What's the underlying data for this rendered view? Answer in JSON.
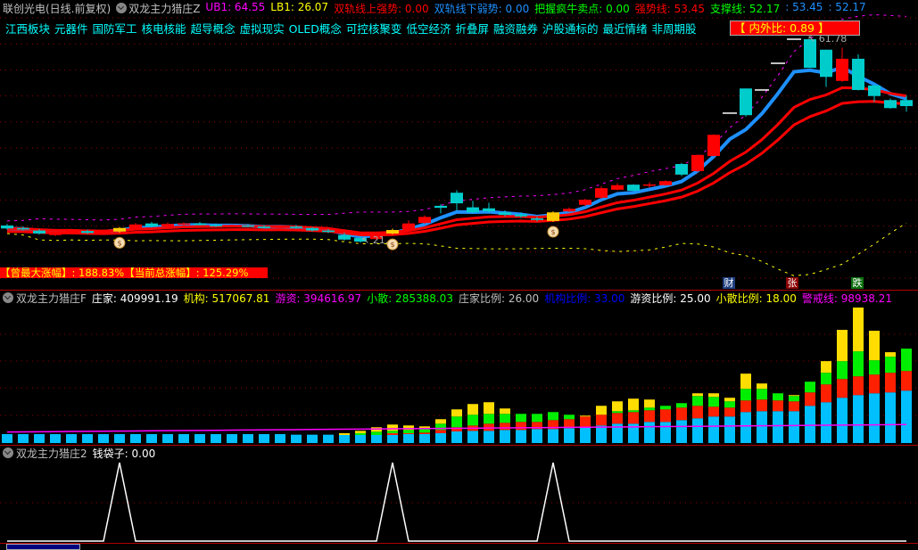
{
  "header": {
    "stock": "联创光电(日线.前复权)",
    "indicator": "双龙主力猎庄Z",
    "items": [
      {
        "label": "UB1: 64.55",
        "color": "#ff00ff"
      },
      {
        "label": "LB1: 26.07",
        "color": "#ffff00"
      },
      {
        "label": "双轨线上强势: 0.00",
        "color": "#ff0000"
      },
      {
        "label": "双轨线下弱势: 0.00",
        "color": "#1e90ff"
      },
      {
        "label": "把握疯牛卖点: 0.00",
        "color": "#00ff00"
      },
      {
        "label": "强势线: 53.45",
        "color": "#ff0000"
      },
      {
        "label": "支撑线: 52.17",
        "color": "#00ff00"
      },
      {
        "label": ": 53.45",
        "color": "#1e90ff"
      },
      {
        "label": ": 52.17",
        "color": "#1e90ff"
      }
    ]
  },
  "tags": [
    "江西板块",
    "元器件",
    "国防军工",
    "核电核能",
    "超导概念",
    "虚拟现实",
    "OLED概念",
    "可控核聚变",
    "低空经济",
    "折叠屏",
    "融资融券",
    "沪股通标的",
    "最近情绪",
    "非周期股"
  ],
  "ratio_label": "【 内外比: 0.89 】",
  "gain_label": "【曾最大涨幅】: 188.83%【当前总涨幅】: 125.29%",
  "markers": {
    "cai": "财",
    "zhang": "张",
    "die": "跌"
  },
  "panel2": {
    "indicator": "双龙主力猎庄F",
    "items": [
      {
        "label": "庄家: 409991.19",
        "color": "#ffffff"
      },
      {
        "label": "机构: 517067.81",
        "color": "#ffff00"
      },
      {
        "label": "游资: 394616.97",
        "color": "#ff00ff"
      },
      {
        "label": "小散: 285388.03",
        "color": "#00ff00"
      },
      {
        "label": "庄家比例: 26.00",
        "color": "#c0c0c0"
      },
      {
        "label": "机构比例: 33.00",
        "color": "#0000ff"
      },
      {
        "label": "游资比例: 25.00",
        "color": "#ffffff"
      },
      {
        "label": "小散比例: 18.00",
        "color": "#ffff00"
      },
      {
        "label": "警戒线: 98938.21",
        "color": "#ff00ff"
      }
    ]
  },
  "panel3": {
    "indicator": "双龙主力猎庄2",
    "items": [
      {
        "label": "钱袋子: 0.00",
        "color": "#ffffff"
      }
    ]
  },
  "colors": {
    "up": "#ff0000",
    "down": "#00cccc",
    "signal": "#ffcc00",
    "vol_base": "#00bfff",
    "vol_red": "#ff2000",
    "vol_green": "#00ee00",
    "vol_yellow": "#ffdd00"
  },
  "chart_data": {
    "type": "candlestick",
    "price_high_label": "61.78",
    "price_low_label": "21.",
    "candles": [
      [
        24.8,
        25.1,
        24.0,
        24.2
      ],
      [
        24.3,
        24.6,
        23.8,
        24.0
      ],
      [
        23.8,
        24.1,
        23.0,
        23.2
      ],
      [
        22.9,
        23.5,
        22.7,
        23.3
      ],
      [
        23.2,
        24.1,
        23.0,
        23.9
      ],
      [
        23.7,
        24.0,
        23.1,
        23.3
      ],
      [
        23.4,
        23.9,
        23.0,
        23.6
      ],
      [
        23.6,
        24.5,
        23.3,
        24.3
      ],
      [
        24.2,
        25.3,
        24.0,
        25.0
      ],
      [
        25.2,
        25.5,
        24.4,
        24.6
      ],
      [
        24.6,
        25.4,
        24.4,
        25.1
      ],
      [
        25.0,
        25.4,
        24.7,
        25.2
      ],
      [
        25.2,
        25.5,
        24.8,
        24.9
      ],
      [
        24.9,
        25.2,
        24.5,
        24.7
      ],
      [
        24.7,
        25.0,
        24.4,
        24.8
      ],
      [
        24.8,
        25.1,
        24.5,
        24.6
      ],
      [
        24.6,
        24.9,
        24.2,
        24.3
      ],
      [
        24.3,
        24.8,
        24.1,
        24.6
      ],
      [
        24.6,
        24.9,
        24.2,
        24.3
      ],
      [
        24.3,
        24.5,
        23.6,
        23.8
      ],
      [
        23.8,
        24.1,
        23.3,
        23.5
      ],
      [
        22.9,
        23.4,
        21.8,
        22.0
      ],
      [
        22.3,
        22.6,
        21.4,
        21.6
      ],
      [
        22.1,
        23.5,
        21.9,
        23.3
      ],
      [
        23.2,
        24.2,
        23.0,
        23.9
      ],
      [
        23.9,
        25.8,
        23.7,
        25.2
      ],
      [
        25.3,
        26.8,
        25.1,
        26.5
      ],
      [
        28.7,
        29.0,
        27.2,
        28.3
      ],
      [
        31.3,
        31.8,
        27.8,
        29.2
      ],
      [
        28.4,
        29.7,
        27.2,
        27.4
      ],
      [
        28.2,
        29.3,
        27.3,
        27.6
      ],
      [
        27.4,
        27.8,
        26.6,
        26.9
      ],
      [
        27.0,
        27.4,
        26.3,
        26.6
      ],
      [
        26.2,
        26.6,
        25.6,
        25.9
      ],
      [
        25.7,
        27.6,
        25.5,
        27.4
      ],
      [
        27.6,
        28.4,
        27.4,
        28.1
      ],
      [
        28.9,
        30.1,
        28.6,
        29.9
      ],
      [
        30.3,
        32.6,
        30.1,
        32.2
      ],
      [
        31.9,
        33.2,
        31.8,
        32.8
      ],
      [
        32.9,
        33.0,
        31.6,
        31.7
      ],
      [
        32.9,
        33.4,
        32.3,
        32.95
      ],
      [
        32.8,
        33.8,
        32.7,
        33.6
      ],
      [
        37.0,
        37.2,
        34.6,
        34.9
      ],
      [
        35.6,
        38.9,
        35.4,
        38.8
      ],
      [
        38.6,
        42.9,
        38.5,
        42.8
      ],
      [
        47.1,
        47.1,
        47.1,
        47.1
      ],
      [
        52.0,
        52.0,
        46.4,
        46.7
      ],
      [
        51.7,
        51.7,
        51.7,
        51.7
      ],
      [
        57.0,
        57.0,
        57.0,
        57.0
      ],
      [
        61.78,
        61.78,
        61.78,
        61.78
      ],
      [
        61.78,
        61.78,
        56.1,
        56.1
      ],
      [
        59.7,
        59.7,
        52.3,
        54.3
      ],
      [
        53.5,
        60.1,
        53.3,
        57.9
      ],
      [
        57.9,
        58.8,
        51.6,
        51.7
      ],
      [
        52.6,
        52.8,
        49.3,
        50.5
      ],
      [
        49.7,
        50.0,
        48.0,
        48.1
      ],
      [
        49.7,
        50.6,
        47.4,
        48.5
      ]
    ],
    "signal_bars": [
      7,
      24,
      34
    ],
    "volume": {
      "series": [
        "庄家",
        "机构",
        "游资",
        "小散"
      ],
      "stack": [
        [
          30,
          0,
          0,
          0
        ],
        [
          30,
          0,
          0,
          0
        ],
        [
          30,
          0,
          0,
          0
        ],
        [
          30,
          0,
          0,
          0
        ],
        [
          30,
          0,
          0,
          0
        ],
        [
          30,
          0,
          0,
          0
        ],
        [
          30,
          0,
          0,
          0
        ],
        [
          30,
          0,
          0,
          0
        ],
        [
          30,
          0,
          0,
          0
        ],
        [
          30,
          0,
          0,
          0
        ],
        [
          30,
          0,
          0,
          0
        ],
        [
          30,
          0,
          0,
          0
        ],
        [
          30,
          0,
          0,
          0
        ],
        [
          30,
          0,
          0,
          0
        ],
        [
          30,
          0,
          0,
          0
        ],
        [
          30,
          0,
          0,
          0
        ],
        [
          30,
          0,
          0,
          0
        ],
        [
          30,
          0,
          0,
          0
        ],
        [
          28,
          0,
          0,
          0
        ],
        [
          28,
          0,
          0,
          0
        ],
        [
          28,
          0,
          0,
          0
        ],
        [
          27,
          0,
          0,
          6
        ],
        [
          27,
          0,
          6,
          8
        ],
        [
          27,
          0,
          11,
          15
        ],
        [
          27,
          6,
          8,
          21
        ],
        [
          30,
          3,
          11,
          15
        ],
        [
          30,
          5,
          16,
          5
        ],
        [
          33,
          11,
          21,
          15
        ],
        [
          39,
          14,
          36,
          24
        ],
        [
          41,
          18,
          36,
          36
        ],
        [
          41,
          24,
          33,
          39
        ],
        [
          44,
          24,
          30,
          18
        ],
        [
          44,
          27,
          27,
          0
        ],
        [
          47,
          24,
          27,
          0
        ],
        [
          47,
          30,
          27,
          0
        ],
        [
          50,
          30,
          15,
          0
        ],
        [
          53,
          36,
          0,
          3
        ],
        [
          59,
          36,
          0,
          30
        ],
        [
          65,
          36,
          6,
          33
        ],
        [
          65,
          39,
          6,
          39
        ],
        [
          71,
          39,
          9,
          27
        ],
        [
          71,
          42,
          12,
          0
        ],
        [
          77,
          42,
          15,
          0
        ],
        [
          83,
          42,
          33,
          9
        ],
        [
          89,
          33,
          33,
          12
        ],
        [
          89,
          30,
          21,
          12
        ],
        [
          104,
          39,
          39,
          51
        ],
        [
          107,
          39,
          36,
          18
        ],
        [
          107,
          36,
          24,
          0
        ],
        [
          107,
          33,
          18,
          3
        ],
        [
          125,
          45,
          36,
          0
        ],
        [
          137,
          60,
          39,
          39
        ],
        [
          152,
          63,
          60,
          105
        ],
        [
          161,
          63,
          84,
          147
        ],
        [
          167,
          63,
          48,
          99
        ],
        [
          170,
          66,
          54,
          15
        ],
        [
          176,
          66,
          75,
          0
        ]
      ],
      "warning_line": [
        37,
        62
      ]
    },
    "money_bag": [
      0,
      0,
      0,
      0,
      0,
      0,
      0,
      1,
      0,
      0,
      0,
      0,
      0,
      0,
      0,
      0,
      0,
      0,
      0,
      0,
      0,
      0,
      0,
      0,
      1,
      0,
      0,
      0,
      0,
      0,
      0,
      0,
      0,
      0,
      1,
      0,
      0,
      0,
      0,
      0,
      0,
      0,
      0,
      0,
      0,
      0,
      0,
      0,
      0,
      0,
      0,
      0,
      0,
      0,
      0,
      0,
      0
    ]
  }
}
